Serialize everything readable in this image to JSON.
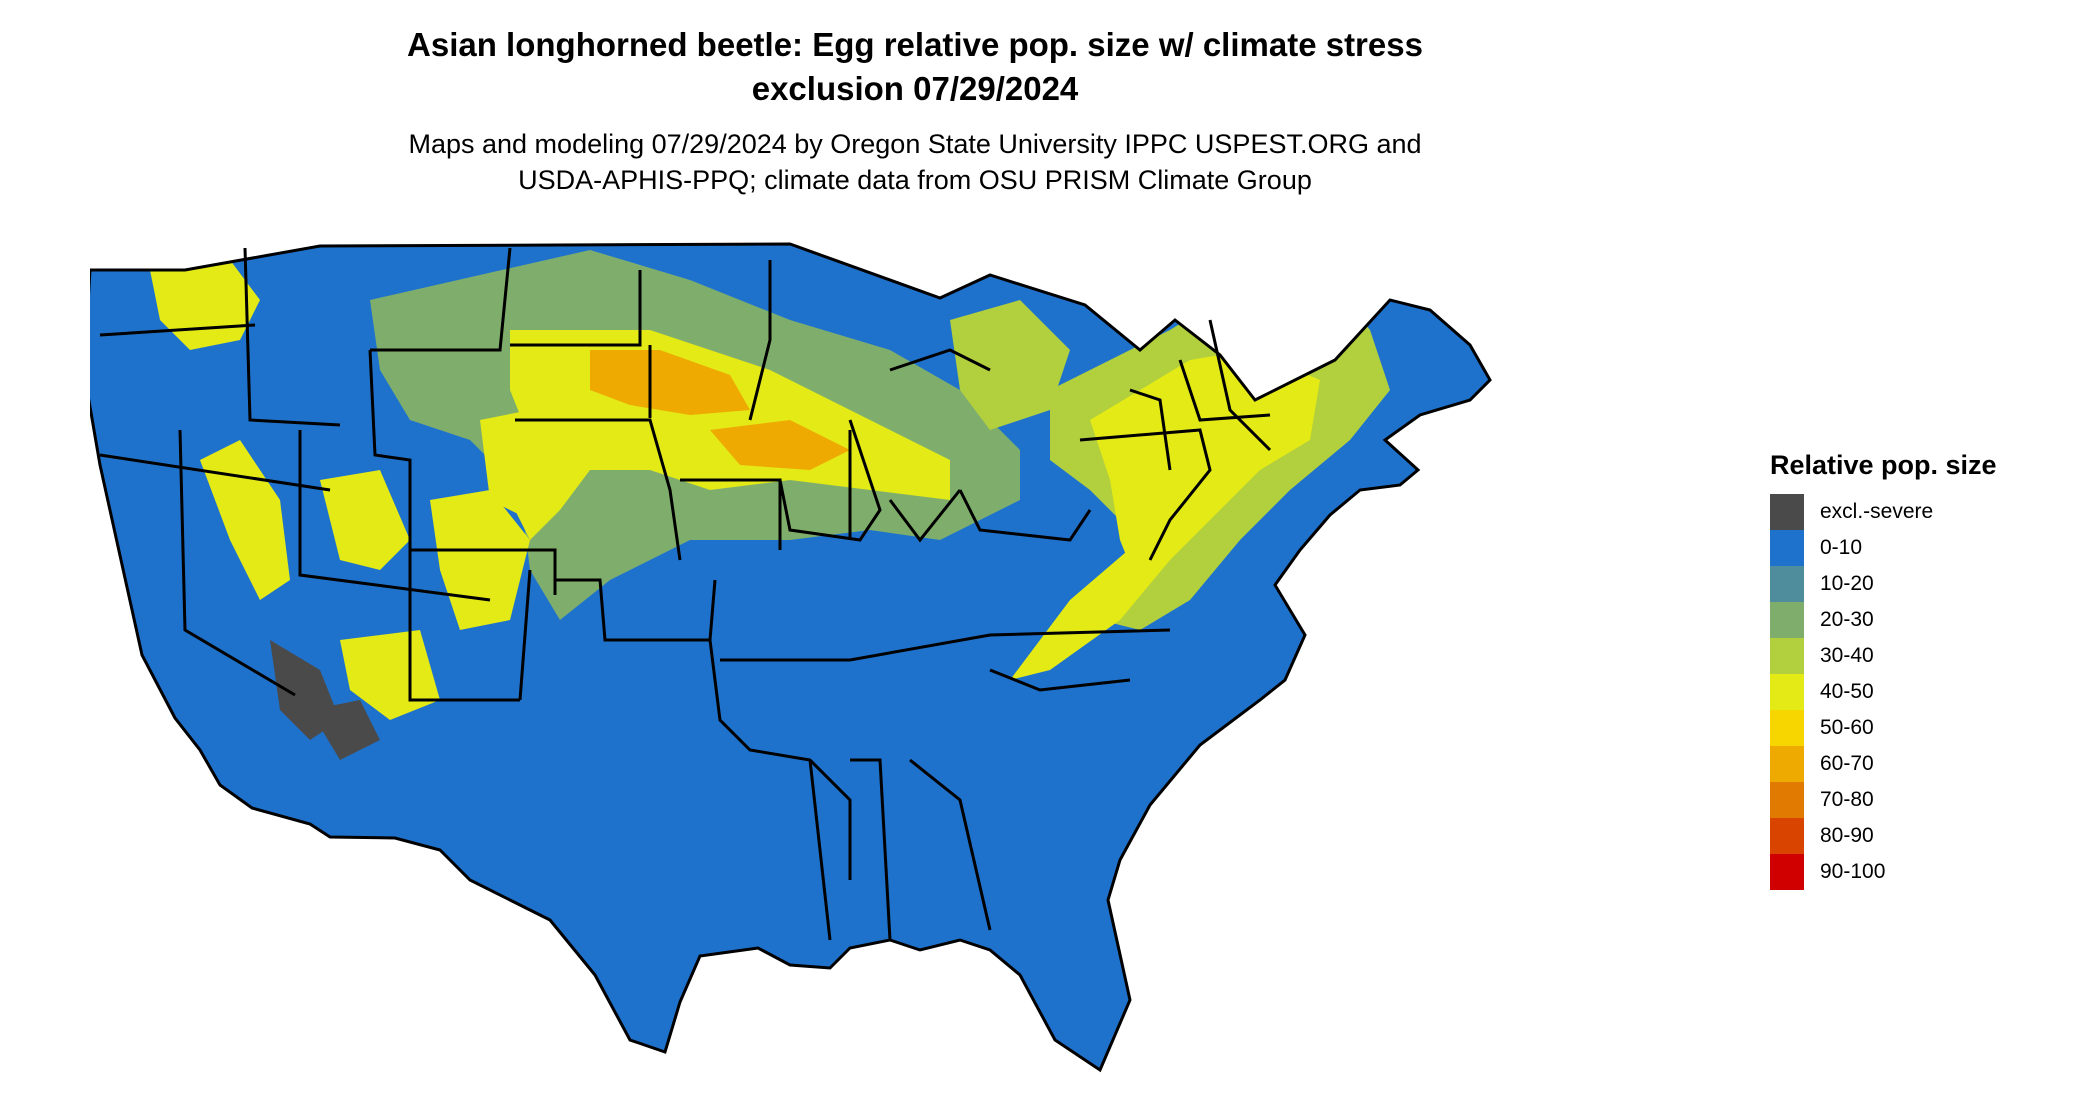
{
  "title_line1": "Asian longhorned beetle: Egg relative pop. size w/ climate stress",
  "title_line2": "exclusion 07/29/2024",
  "subtitle_line1": "Maps and modeling 07/29/2024 by Oregon State University IPPC USPEST.ORG and",
  "subtitle_line2": "USDA-APHIS-PPQ; climate data from OSU PRISM Climate Group",
  "legend": {
    "title": "Relative pop. size",
    "items": [
      {
        "label": "excl.-severe",
        "color": "#4a4a4a"
      },
      {
        "label": "0-10",
        "color": "#1f72cc"
      },
      {
        "label": "10-20",
        "color": "#4f8c9c"
      },
      {
        "label": "20-30",
        "color": "#7fae6c"
      },
      {
        "label": "30-40",
        "color": "#b2cf3e"
      },
      {
        "label": "40-50",
        "color": "#e3ea16"
      },
      {
        "label": "50-60",
        "color": "#f7d600"
      },
      {
        "label": "60-70",
        "color": "#eeaa00"
      },
      {
        "label": "70-80",
        "color": "#e07a00"
      },
      {
        "label": "80-90",
        "color": "#d94400"
      },
      {
        "label": "90-100",
        "color": "#d00000"
      }
    ]
  },
  "map_colors": {
    "land": "#1f72cc",
    "border": "#000000"
  }
}
